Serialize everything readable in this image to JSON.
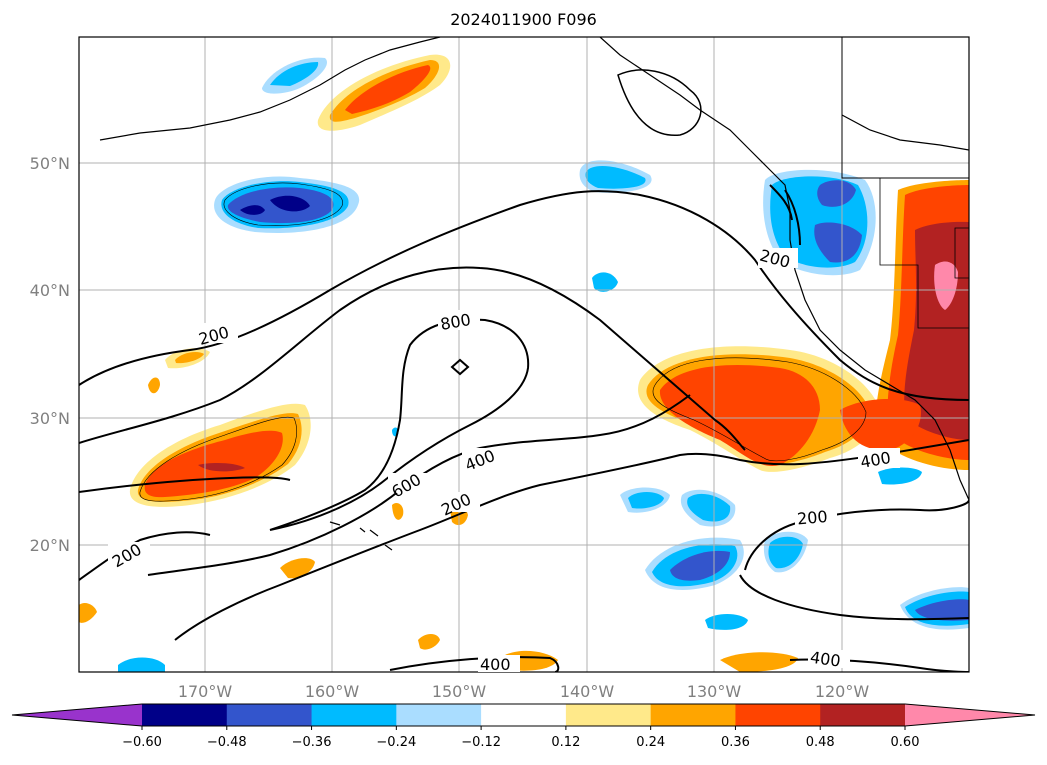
{
  "title": "2024011900 F096",
  "lat_labels": [
    "50°N",
    "40°N",
    "30°N",
    "20°N"
  ],
  "lon_labels": [
    "170°W",
    "160°W",
    "150°W",
    "140°W",
    "130°W",
    "120°W"
  ],
  "contour_labels": [
    "200",
    "200",
    "800",
    "600",
    "400",
    "200",
    "200",
    "200",
    "400",
    "400",
    "400"
  ],
  "colorbar": {
    "colors": [
      "#9933cc",
      "#000088",
      "#3355cc",
      "#00bbff",
      "#aaddff",
      "#ffffff",
      "#ffe98a",
      "#ffa500",
      "#ff4400",
      "#b22222",
      "#ff88aa"
    ],
    "ticks": [
      "−0.60",
      "−0.48",
      "−0.36",
      "−0.24",
      "−0.12",
      "0.12",
      "0.24",
      "0.36",
      "0.48",
      "0.60"
    ]
  }
}
